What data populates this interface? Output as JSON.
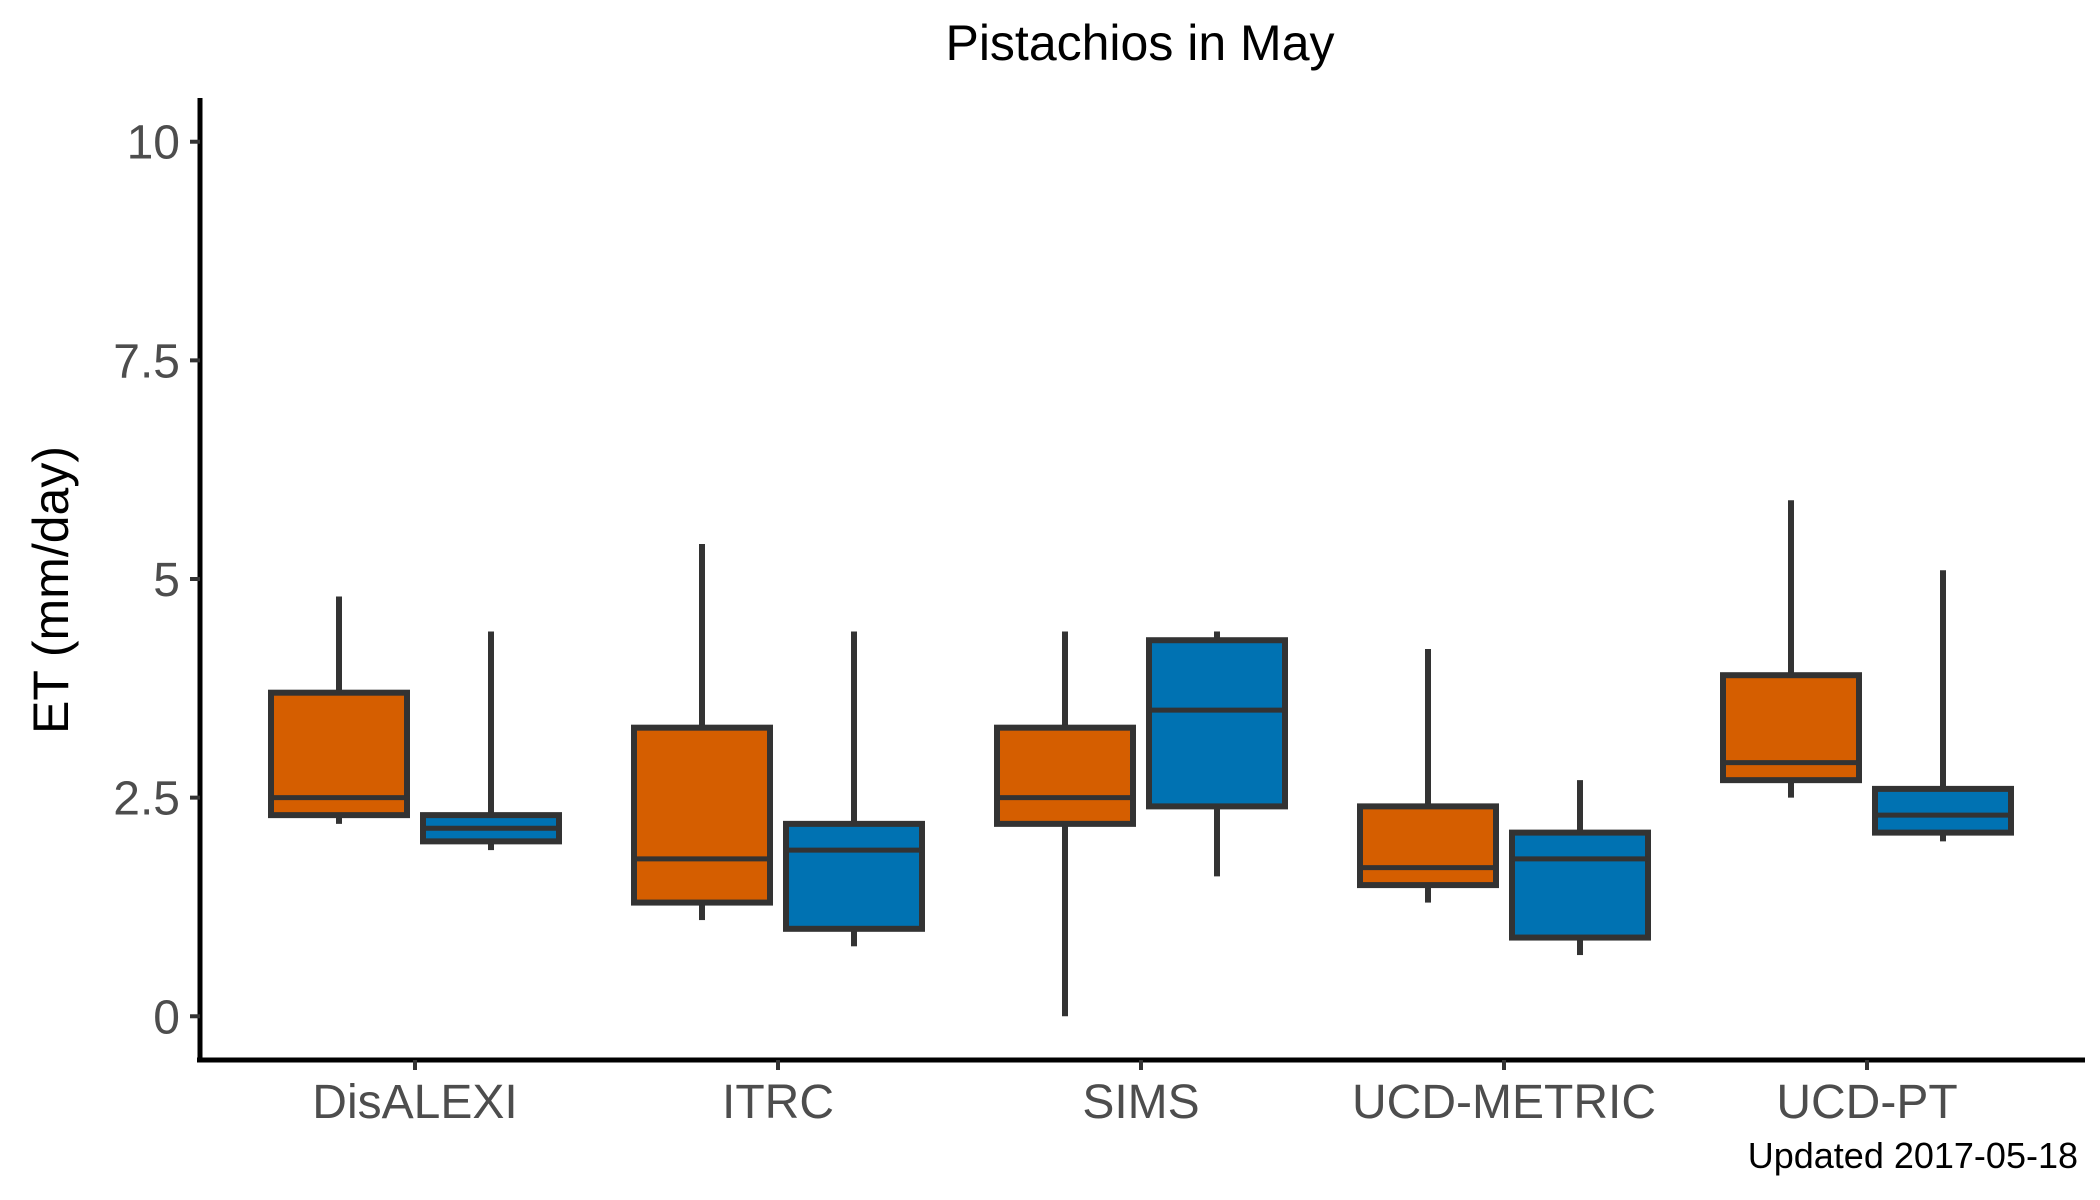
{
  "chart_data": {
    "type": "boxplot",
    "title": "Pistachios in May",
    "xlabel": "",
    "ylabel": "ET (mm/day)",
    "ylim": [
      -0.5,
      10.5
    ],
    "yticks": [
      0,
      2.5,
      5,
      7.5,
      10
    ],
    "ytick_labels": [
      "0",
      "2.5",
      "5",
      "7.5",
      "10"
    ],
    "categories": [
      "DisALEXI",
      "ITRC",
      "SIMS",
      "UCD-METRIC",
      "UCD-PT"
    ],
    "grid": false,
    "legend": "none",
    "caption": "Updated  2017-05-18",
    "series": [
      {
        "color": "#d55e00",
        "boxes": [
          {
            "min": 2.2,
            "q1": 2.3,
            "median": 2.5,
            "q3": 3.7,
            "max": 4.8
          },
          {
            "min": 1.1,
            "q1": 1.3,
            "median": 1.8,
            "q3": 3.3,
            "max": 5.4
          },
          {
            "min": 0.0,
            "q1": 2.2,
            "median": 2.5,
            "q3": 3.3,
            "max": 4.4
          },
          {
            "min": 1.3,
            "q1": 1.5,
            "median": 1.7,
            "q3": 2.4,
            "max": 4.2
          },
          {
            "min": 2.5,
            "q1": 2.7,
            "median": 2.9,
            "q3": 3.9,
            "max": 5.9
          }
        ]
      },
      {
        "color": "#0072b2",
        "boxes": [
          {
            "min": 1.9,
            "q1": 2.0,
            "median": 2.15,
            "q3": 2.3,
            "max": 4.4
          },
          {
            "min": 0.8,
            "q1": 1.0,
            "median": 1.9,
            "q3": 2.2,
            "max": 4.4
          },
          {
            "min": 1.6,
            "q1": 2.4,
            "median": 3.5,
            "q3": 4.3,
            "max": 4.4
          },
          {
            "min": 0.7,
            "q1": 0.9,
            "median": 1.8,
            "q3": 2.1,
            "max": 2.7
          },
          {
            "min": 2.0,
            "q1": 2.1,
            "median": 2.3,
            "q3": 2.6,
            "max": 5.1
          }
        ]
      }
    ]
  }
}
